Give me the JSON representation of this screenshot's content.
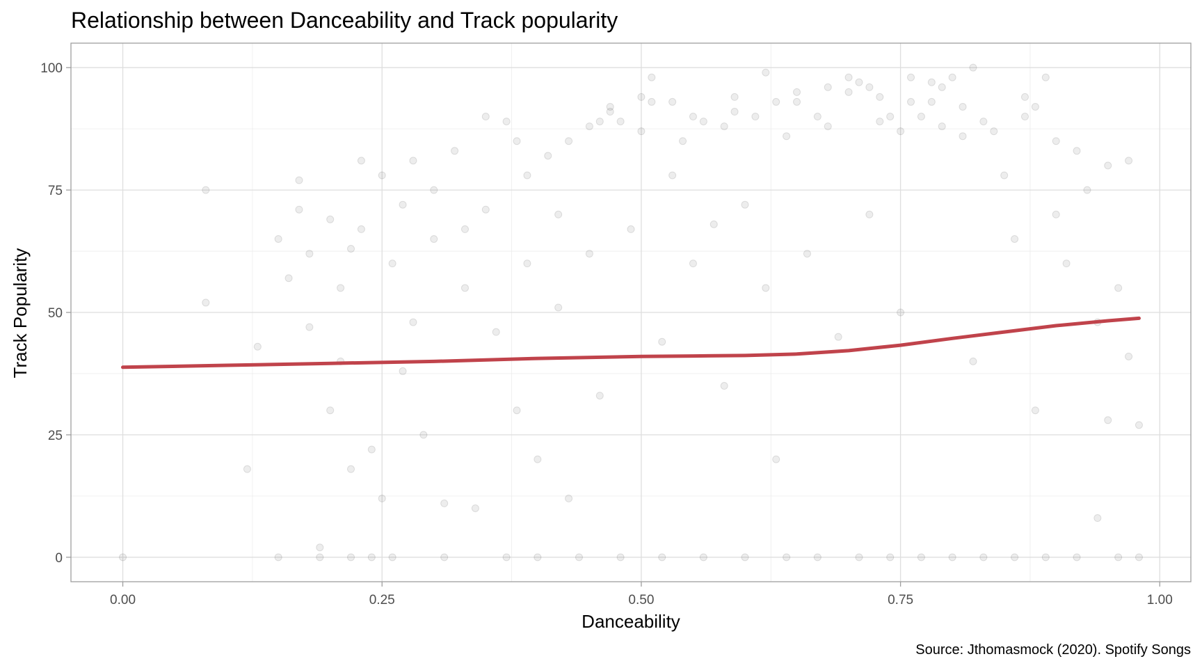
{
  "chart_data": {
    "type": "scatter",
    "title": "Relationship between Danceability and Track popularity",
    "xlabel": "Danceability",
    "ylabel": "Track Popularity",
    "caption": "Source: Jthomasmock (2020). Spotify Songs",
    "xlim": [
      -0.05,
      1.03
    ],
    "ylim": [
      -5,
      105
    ],
    "x_ticks": [
      0,
      0.25,
      0.5,
      0.75,
      1
    ],
    "x_tick_labels": [
      "0.00",
      "0.25",
      "0.50",
      "0.75",
      "1.00"
    ],
    "y_ticks": [
      0,
      25,
      50,
      75,
      100
    ],
    "y_tick_labels": [
      "0",
      "25",
      "50",
      "75",
      "100"
    ],
    "grid": true,
    "legend": "none",
    "point_color": "#000000",
    "point_opacity": 0.07,
    "smooth_color": "#c0434b",
    "series": [
      {
        "type": "scatter",
        "points": [
          [
            0.0,
            0
          ],
          [
            0.08,
            75
          ],
          [
            0.08,
            52
          ],
          [
            0.12,
            18
          ],
          [
            0.13,
            43
          ],
          [
            0.15,
            65
          ],
          [
            0.15,
            0
          ],
          [
            0.16,
            57
          ],
          [
            0.17,
            77
          ],
          [
            0.17,
            71
          ],
          [
            0.18,
            62
          ],
          [
            0.18,
            47
          ],
          [
            0.19,
            0
          ],
          [
            0.19,
            2
          ],
          [
            0.2,
            69
          ],
          [
            0.2,
            30
          ],
          [
            0.21,
            55
          ],
          [
            0.21,
            40
          ],
          [
            0.22,
            63
          ],
          [
            0.22,
            18
          ],
          [
            0.22,
            0
          ],
          [
            0.23,
            81
          ],
          [
            0.23,
            67
          ],
          [
            0.24,
            22
          ],
          [
            0.24,
            0
          ],
          [
            0.25,
            78
          ],
          [
            0.25,
            12
          ],
          [
            0.26,
            60
          ],
          [
            0.26,
            0
          ],
          [
            0.27,
            72
          ],
          [
            0.27,
            38
          ],
          [
            0.28,
            81
          ],
          [
            0.28,
            48
          ],
          [
            0.29,
            25
          ],
          [
            0.3,
            75
          ],
          [
            0.3,
            65
          ],
          [
            0.31,
            11
          ],
          [
            0.31,
            0
          ],
          [
            0.32,
            83
          ],
          [
            0.33,
            55
          ],
          [
            0.33,
            67
          ],
          [
            0.34,
            10
          ],
          [
            0.35,
            90
          ],
          [
            0.35,
            71
          ],
          [
            0.36,
            46
          ],
          [
            0.37,
            89
          ],
          [
            0.37,
            0
          ],
          [
            0.38,
            30
          ],
          [
            0.38,
            85
          ],
          [
            0.39,
            78
          ],
          [
            0.39,
            60
          ],
          [
            0.4,
            20
          ],
          [
            0.4,
            0
          ],
          [
            0.41,
            82
          ],
          [
            0.42,
            51
          ],
          [
            0.42,
            70
          ],
          [
            0.43,
            85
          ],
          [
            0.43,
            12
          ],
          [
            0.44,
            0
          ],
          [
            0.45,
            88
          ],
          [
            0.45,
            62
          ],
          [
            0.46,
            89
          ],
          [
            0.46,
            33
          ],
          [
            0.47,
            92
          ],
          [
            0.47,
            91
          ],
          [
            0.48,
            89
          ],
          [
            0.48,
            0
          ],
          [
            0.49,
            67
          ],
          [
            0.5,
            94
          ],
          [
            0.5,
            87
          ],
          [
            0.51,
            98
          ],
          [
            0.51,
            93
          ],
          [
            0.52,
            44
          ],
          [
            0.52,
            0
          ],
          [
            0.53,
            93
          ],
          [
            0.53,
            78
          ],
          [
            0.54,
            85
          ],
          [
            0.55,
            90
          ],
          [
            0.55,
            60
          ],
          [
            0.56,
            89
          ],
          [
            0.56,
            0
          ],
          [
            0.57,
            68
          ],
          [
            0.58,
            88
          ],
          [
            0.58,
            35
          ],
          [
            0.59,
            94
          ],
          [
            0.59,
            91
          ],
          [
            0.6,
            72
          ],
          [
            0.6,
            0
          ],
          [
            0.61,
            90
          ],
          [
            0.62,
            99
          ],
          [
            0.62,
            55
          ],
          [
            0.63,
            93
          ],
          [
            0.63,
            20
          ],
          [
            0.64,
            86
          ],
          [
            0.64,
            0
          ],
          [
            0.65,
            93
          ],
          [
            0.65,
            95
          ],
          [
            0.66,
            62
          ],
          [
            0.67,
            90
          ],
          [
            0.67,
            0
          ],
          [
            0.68,
            96
          ],
          [
            0.68,
            88
          ],
          [
            0.69,
            45
          ],
          [
            0.7,
            98
          ],
          [
            0.7,
            95
          ],
          [
            0.71,
            97
          ],
          [
            0.71,
            0
          ],
          [
            0.72,
            96
          ],
          [
            0.72,
            70
          ],
          [
            0.73,
            94
          ],
          [
            0.73,
            89
          ],
          [
            0.74,
            90
          ],
          [
            0.74,
            0
          ],
          [
            0.75,
            87
          ],
          [
            0.75,
            50
          ],
          [
            0.76,
            93
          ],
          [
            0.76,
            98
          ],
          [
            0.77,
            90
          ],
          [
            0.77,
            0
          ],
          [
            0.78,
            97
          ],
          [
            0.78,
            93
          ],
          [
            0.79,
            96
          ],
          [
            0.79,
            88
          ],
          [
            0.8,
            98
          ],
          [
            0.8,
            0
          ],
          [
            0.81,
            86
          ],
          [
            0.81,
            92
          ],
          [
            0.82,
            100
          ],
          [
            0.82,
            40
          ],
          [
            0.83,
            89
          ],
          [
            0.83,
            0
          ],
          [
            0.84,
            87
          ],
          [
            0.85,
            78
          ],
          [
            0.86,
            65
          ],
          [
            0.86,
            0
          ],
          [
            0.87,
            94
          ],
          [
            0.87,
            90
          ],
          [
            0.88,
            92
          ],
          [
            0.88,
            30
          ],
          [
            0.89,
            98
          ],
          [
            0.89,
            0
          ],
          [
            0.9,
            85
          ],
          [
            0.9,
            70
          ],
          [
            0.91,
            60
          ],
          [
            0.92,
            83
          ],
          [
            0.92,
            0
          ],
          [
            0.93,
            75
          ],
          [
            0.94,
            48
          ],
          [
            0.94,
            8
          ],
          [
            0.95,
            80
          ],
          [
            0.95,
            28
          ],
          [
            0.96,
            55
          ],
          [
            0.96,
            0
          ],
          [
            0.97,
            81
          ],
          [
            0.97,
            41
          ],
          [
            0.98,
            27
          ],
          [
            0.98,
            0
          ]
        ]
      },
      {
        "type": "smooth",
        "x": [
          0.0,
          0.1,
          0.2,
          0.3,
          0.4,
          0.5,
          0.55,
          0.6,
          0.65,
          0.7,
          0.75,
          0.8,
          0.85,
          0.9,
          0.95,
          0.98
        ],
        "y": [
          38.8,
          39.2,
          39.6,
          40.0,
          40.6,
          41.0,
          41.1,
          41.2,
          41.5,
          42.2,
          43.3,
          44.7,
          46.0,
          47.3,
          48.3,
          48.8
        ]
      }
    ]
  }
}
